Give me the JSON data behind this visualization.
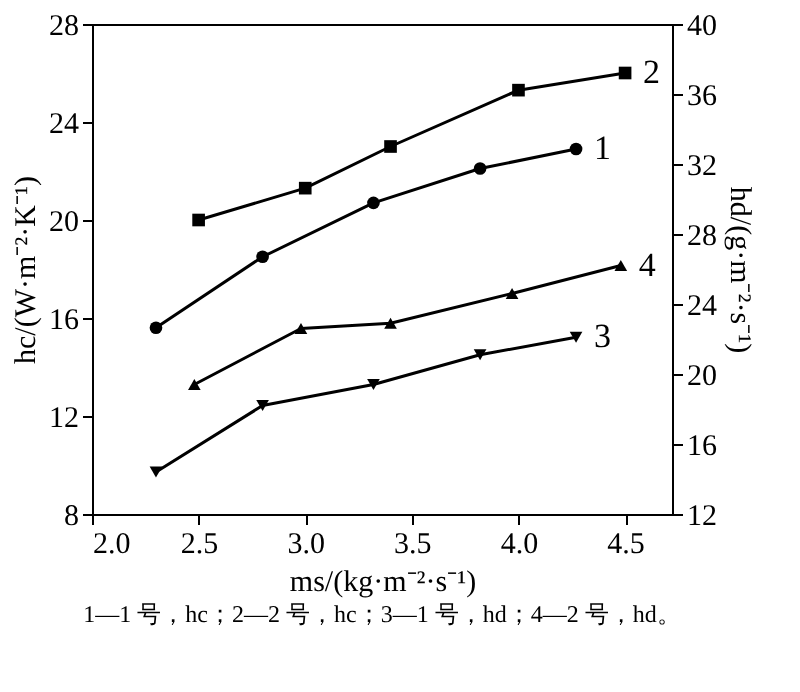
{
  "chart_data": {
    "type": "line",
    "xlabel": "ms/(kg·m⁻²·s⁻¹)",
    "ylabel": "hc/(W·m⁻²·K⁻¹)",
    "y2label": "hd/(g·m⁻²·s⁻¹)",
    "xlim": [
      2.0,
      4.72
    ],
    "xticks": [
      {
        "value": 2,
        "label": "2.0"
      },
      {
        "value": 2.5,
        "label": "2.5"
      },
      {
        "value": 3,
        "label": "3.0"
      },
      {
        "value": 3.5,
        "label": "3.5"
      },
      {
        "value": 4,
        "label": "4.0"
      },
      {
        "value": 4.5,
        "label": "4.5"
      }
    ],
    "ylim": [
      8,
      28
    ],
    "yticks": [
      8,
      12,
      16,
      20,
      24,
      28
    ],
    "y2lim": [
      12,
      40
    ],
    "y2ticks": [
      12,
      16,
      20,
      24,
      28,
      32,
      36,
      40
    ],
    "grid": false,
    "line_style": "solid",
    "series": [
      {
        "name": "1",
        "color": "#000000",
        "marker": "circle",
        "x": [
          2.3,
          2.8,
          3.32,
          3.82,
          4.27
        ],
        "values": [
          15.6,
          18.5,
          20.7,
          22.1,
          22.9
        ]
      },
      {
        "name": "2",
        "color": "#000000",
        "marker": "square",
        "x": [
          2.5,
          3.0,
          3.4,
          4.0,
          4.5
        ],
        "values": [
          20.0,
          21.3,
          23.0,
          25.3,
          26.0
        ]
      },
      {
        "name": "3",
        "color": "#000000",
        "marker": "triangle-down",
        "axis": "y2",
        "x": [
          2.3,
          2.8,
          3.32,
          3.82,
          4.27
        ],
        "values": [
          14.4,
          18.2,
          19.4,
          21.1,
          22.1
        ]
      },
      {
        "name": "4",
        "color": "#000000",
        "marker": "triangle",
        "axis": "y2",
        "x": [
          2.48,
          2.98,
          3.4,
          3.97,
          4.48
        ],
        "values": [
          19.4,
          22.6,
          22.9,
          24.6,
          26.2
        ]
      }
    ],
    "annotations": [
      "1—1 号，hc；2—2 号，hc；3—1 号，hd；4—2 号，hd。"
    ]
  }
}
